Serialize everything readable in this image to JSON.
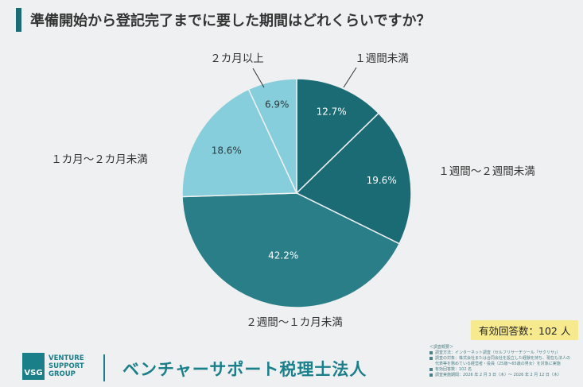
{
  "header": {
    "title": "準備開始から登記完了までに要した期間はどれくらいですか？"
  },
  "chart_data": {
    "type": "pie",
    "title": "準備開始から登記完了までに要した期間はどれくらいですか？",
    "slices": [
      {
        "label": "１週間未満",
        "value": 12.7,
        "display": "12.7%",
        "color": "#1b6b75"
      },
      {
        "label": "１週間〜２週間未満",
        "value": 19.6,
        "display": "19.6%",
        "color": "#1b6b75"
      },
      {
        "label": "２週間〜１カ月未満",
        "value": 42.2,
        "display": "42.2%",
        "color": "#2a7e87"
      },
      {
        "label": "１カ月〜２カ月未満",
        "value": 18.6,
        "display": "18.6%",
        "color": "#86cedb"
      },
      {
        "label": "２カ月以上",
        "value": 6.9,
        "display": "6.9%",
        "color": "#86cedb"
      }
    ],
    "start_angle_deg": 0,
    "direction": "clockwise",
    "slice_border_color": "#eef0f1"
  },
  "answers": {
    "text": "有効回答数：102 人"
  },
  "footer": {
    "logo_abbr": "VSG",
    "logo_lines": [
      "VENTURE",
      "SUPPORT",
      "GROUP"
    ],
    "company": "ベンチャーサポート税理士法人"
  },
  "survey": {
    "heading": "＜調査概要＞",
    "items": [
      "調査方法：インターネット調査（セルフリサーチツール「サクリサ」）",
      "調査の対象：株式会社または合同会社を設立した経験を持ち、現在も法人の代表等を務めている経営者・役員（25歳〜65歳の男女）を対象に実施",
      "有効回答数：102 名",
      "調査実施期間：2026 年 2 月 3 日（木）〜 2026 年 2 月 12 日（木）"
    ]
  }
}
